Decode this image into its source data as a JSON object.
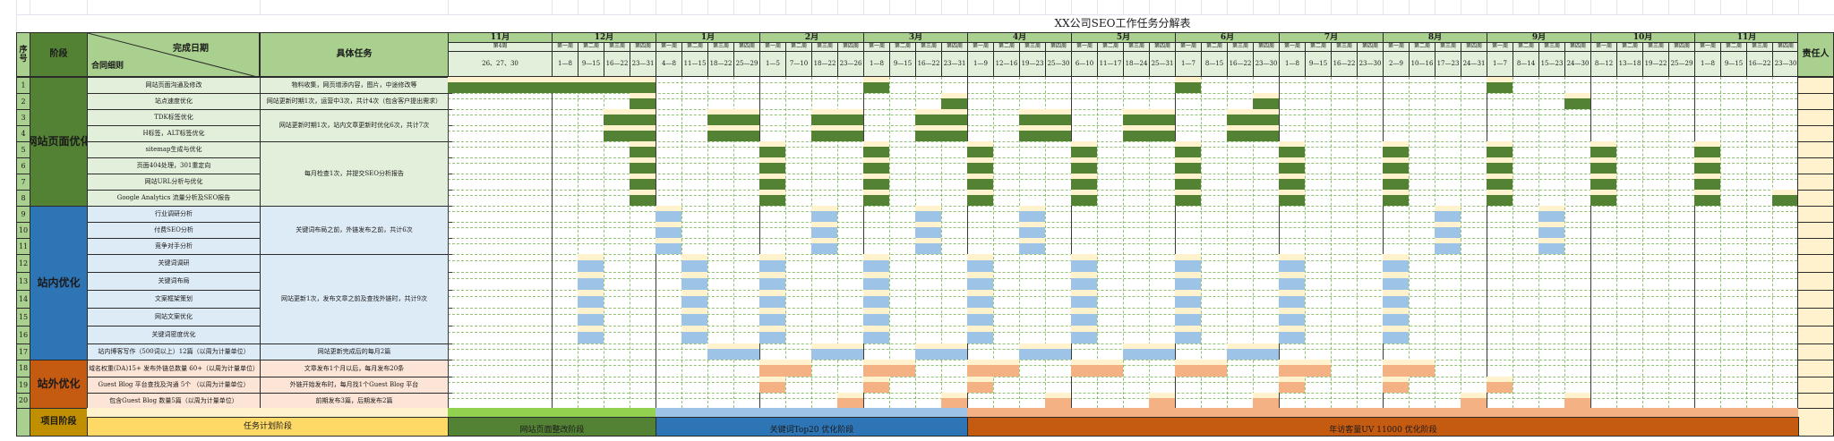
{
  "title": "XX公司SEO工作任务分解表",
  "header": {
    "seq": "序\n号",
    "stage": "阶段",
    "diag_top": "完成日期",
    "diag_bottom": "合同细则",
    "task": "具体任务",
    "owner": "责任人"
  },
  "timeline": {
    "first_col": {
      "month": "11月",
      "week": "第4周",
      "dates": "26、27、30"
    },
    "months": [
      {
        "label": "12月",
        "dates": [
          "1—8",
          "9—15",
          "16—22",
          "23—31"
        ]
      },
      {
        "label": "1月",
        "dates": [
          "4—8",
          "11—15",
          "18—22",
          "25—29"
        ]
      },
      {
        "label": "2月",
        "dates": [
          "1—5",
          "7—10",
          "18—22",
          "23—26"
        ]
      },
      {
        "label": "3月",
        "dates": [
          "1—8",
          "9—15",
          "16—22",
          "23—31"
        ]
      },
      {
        "label": "4月",
        "dates": [
          "1—9",
          "12—16",
          "19—23",
          "25—30"
        ]
      },
      {
        "label": "5月",
        "dates": [
          "6—10",
          "11—17",
          "18—24",
          "25—31"
        ]
      },
      {
        "label": "6月",
        "dates": [
          "1—7",
          "8—15",
          "16—22",
          "23—30"
        ]
      },
      {
        "label": "7月",
        "dates": [
          "1—8",
          "9—15",
          "16—22",
          "23—30"
        ]
      },
      {
        "label": "8月",
        "dates": [
          "2—9",
          "10—16",
          "17—23",
          "24—31"
        ]
      },
      {
        "label": "9月",
        "dates": [
          "1—7",
          "8—14",
          "15—23",
          "24—30"
        ]
      },
      {
        "label": "10月",
        "dates": [
          "8—12",
          "13—18",
          "19—22",
          "25—29"
        ]
      },
      {
        "label": "11月",
        "dates": [
          "1—8",
          "9—15",
          "16—22",
          "23—30"
        ]
      }
    ],
    "week_labels": [
      "第一周",
      "第二周",
      "第三周",
      "第四周"
    ]
  },
  "stages": [
    {
      "label": "网站页面优化",
      "color": "green",
      "rows": [
        1,
        8
      ]
    },
    {
      "label": "站内优化",
      "color": "blue",
      "rows": [
        9,
        17
      ]
    },
    {
      "label": "站外优化",
      "color": "orange",
      "rows": [
        18,
        20
      ]
    }
  ],
  "rows": [
    {
      "seq": "1",
      "item": "网站页面沟通及修改",
      "bars": [
        0,
        1,
        2,
        3,
        4,
        13,
        25,
        37
      ]
    },
    {
      "seq": "2",
      "item": "站点速度优化",
      "bars": [
        4,
        16,
        28,
        40
      ]
    },
    {
      "seq": "3",
      "item": "TDK标签优化",
      "bars": [
        3,
        4,
        7,
        8,
        11,
        12,
        15,
        16,
        19,
        20,
        23,
        24,
        27,
        28
      ]
    },
    {
      "seq": "4",
      "item": "H标签，ALT标签优化",
      "bars": [
        3,
        4,
        7,
        8,
        11,
        12,
        15,
        16,
        19,
        20,
        23,
        24,
        27,
        28
      ]
    },
    {
      "seq": "5",
      "item": "sitemap生成与优化",
      "bars": [
        4,
        9,
        13,
        17,
        21,
        25,
        29,
        33,
        37,
        41,
        45
      ]
    },
    {
      "seq": "6",
      "item": "页面404处理，301重定向",
      "bars": [
        4,
        9,
        13,
        17,
        21,
        25,
        29,
        33,
        37,
        41,
        45
      ]
    },
    {
      "seq": "7",
      "item": "网站URL分析与优化",
      "bars": [
        4,
        9,
        13,
        17,
        21,
        25,
        29,
        33,
        37,
        41,
        45
      ]
    },
    {
      "seq": "8",
      "item": "Google Analytics 流量分析及SEO报告",
      "bars": [
        4,
        9,
        13,
        17,
        21,
        25,
        29,
        33,
        37,
        41,
        45,
        48
      ]
    },
    {
      "seq": "9",
      "item": "行业调研分析",
      "bars": [
        5,
        11,
        15,
        19,
        35,
        39
      ]
    },
    {
      "seq": "10",
      "item": "付费SEO分析",
      "bars": [
        5,
        11,
        15,
        19,
        35,
        39
      ]
    },
    {
      "seq": "11",
      "item": "竞争对手分析",
      "bars": [
        5,
        11,
        15,
        19,
        35,
        39
      ]
    },
    {
      "seq": "12",
      "item": "关键词调研",
      "bars": [
        2,
        6,
        9,
        13,
        17,
        21,
        25,
        29,
        33
      ]
    },
    {
      "seq": "13",
      "item": "关键词布局",
      "bars": [
        2,
        6,
        9,
        13,
        17,
        21,
        25,
        29,
        33
      ]
    },
    {
      "seq": "14",
      "item": "文案框架策划",
      "bars": [
        2,
        6,
        9,
        13,
        17,
        21,
        25,
        29,
        33
      ]
    },
    {
      "seq": "15",
      "item": "网站文案优化",
      "bars": [
        2,
        6,
        9,
        13,
        17,
        21,
        25,
        29,
        33
      ]
    },
    {
      "seq": "16",
      "item": "关键词密度优化",
      "bars": [
        2,
        6,
        9,
        13,
        17,
        21,
        25,
        29,
        33
      ]
    },
    {
      "seq": "17",
      "item": "站内博客写作（500词以上）12篇（以周为计量单位）",
      "bars": [
        7,
        8,
        11,
        12,
        15,
        16,
        19,
        20,
        23,
        24,
        27,
        28
      ]
    },
    {
      "seq": "18",
      "item": "域名权重(DA)15+  发布外链总数量 60+（以周为计量单位）",
      "bars": [
        9,
        10,
        13,
        14,
        17,
        18,
        21,
        22,
        25,
        26,
        29,
        30,
        33,
        34
      ]
    },
    {
      "seq": "19",
      "item": "Guest Blog 平台查找及沟通 5个 （以周为计量单位）",
      "bars": [
        9,
        13,
        17,
        29,
        33,
        37
      ]
    },
    {
      "seq": "20",
      "item": "包含Guest Blog 数量5篇（以周为计量单位）",
      "bars": [
        12,
        16,
        20,
        24,
        28,
        36,
        40
      ]
    }
  ],
  "tasks": [
    {
      "rows": [
        1,
        1
      ],
      "text": "物料收集，网页增添内容，图片，中途修改等"
    },
    {
      "rows": [
        2,
        2
      ],
      "text": "网站更新时期1次，运营中3次，共计4次（包含客户提出需求）"
    },
    {
      "rows": [
        3,
        4
      ],
      "text": "网站更新时期1次，站内文章更新时优化6次，共计7次"
    },
    {
      "rows": [
        5,
        8
      ],
      "text": "每月检查1次，并提交SEO分析报告"
    },
    {
      "rows": [
        9,
        11
      ],
      "text": "关键词布局之前，外链发布之前，共计6次"
    },
    {
      "rows": [
        12,
        16
      ],
      "text": "网站更新1次，发布文章之前及查找外链时，共计9次"
    },
    {
      "rows": [
        17,
        17
      ],
      "text": "网站更新完成后的每月2篇"
    },
    {
      "rows": [
        18,
        18
      ],
      "text": "文章发布1个月以后，每月发布20条"
    },
    {
      "rows": [
        19,
        19
      ],
      "text": "外链开始发布时，每月找1个Guest Blog 平台"
    },
    {
      "rows": [
        20,
        20
      ],
      "text": "前期发布3篇，后期发布2篇"
    }
  ],
  "project_phase": {
    "label": "项目阶段",
    "plan_label": "任务计划阶段",
    "phases": [
      {
        "label": "网站页面整改阶段",
        "from": 0,
        "to": 4,
        "top": "#92d050",
        "bottom": "#548235"
      },
      {
        "label": "关键词Top20 优化阶段",
        "from": 5,
        "to": 16,
        "top": "#9dc3e6",
        "bottom": "#2e75b6"
      },
      {
        "label": "年访客量UV 11000  优化阶段",
        "from": 17,
        "to": 48,
        "top": "#f4b183",
        "bottom": "#c55a11"
      }
    ]
  },
  "colors": {
    "header_green": "#a9d08e",
    "light_green": "#e2efda",
    "dark_green": "#548235",
    "blue": "#2e75b6",
    "light_blue_bar": "#9dc3e6",
    "light_blue_bg": "#ddebf7",
    "orange": "#c55a11",
    "light_orange_bar": "#f4b183",
    "light_orange_bg": "#fce4d6",
    "cap_yellow": "#fff2cc",
    "gold": "#bf8f00",
    "plan_yellow": "#ffd966"
  }
}
